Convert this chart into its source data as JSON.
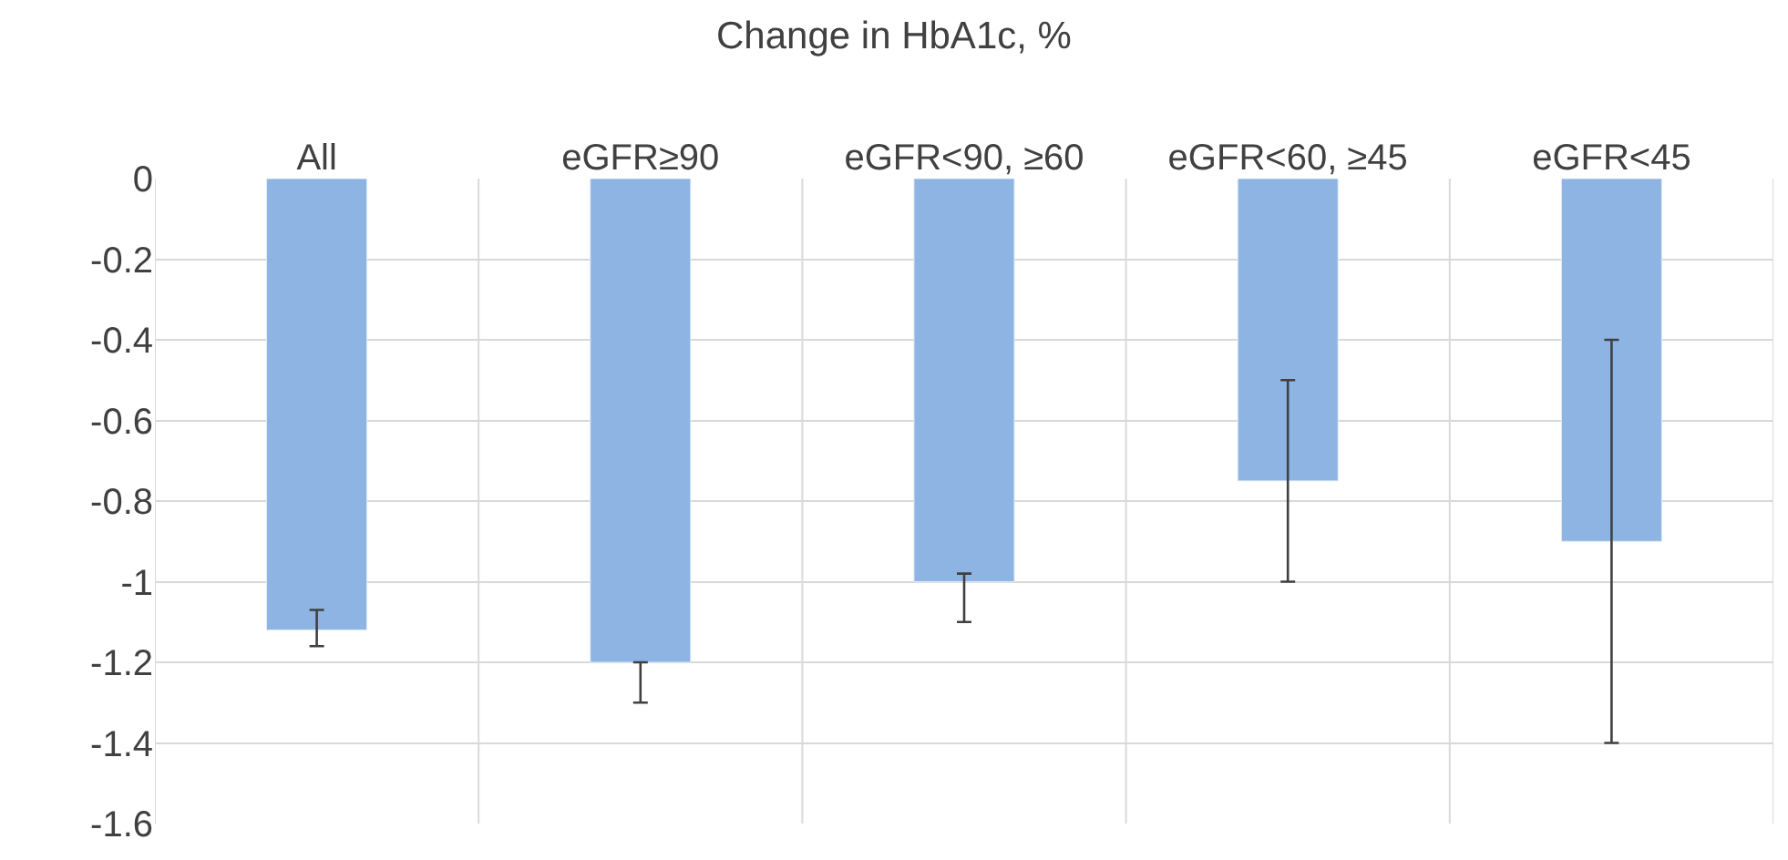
{
  "chart_data": {
    "type": "bar",
    "title": "Change in HbA1c, %",
    "categories": [
      "All",
      "eGFR≥90",
      "eGFR<90, ≥60",
      "eGFR<60, ≥45",
      "eGFR<45"
    ],
    "values": [
      -1.12,
      -1.2,
      -1.0,
      -0.75,
      -0.9
    ],
    "errors": [
      [
        -1.16,
        -1.07
      ],
      [
        -1.3,
        -1.2
      ],
      [
        -1.1,
        -0.98
      ],
      [
        -1.0,
        -0.5
      ],
      [
        -1.4,
        -0.4
      ]
    ],
    "color": "#8eb4e3",
    "ylim": [
      -1.6,
      0
    ],
    "yticks": [
      0,
      -0.2,
      -0.4,
      -0.6,
      -0.8,
      -1,
      -1.2,
      -1.4,
      -1.6
    ],
    "grid": true
  }
}
